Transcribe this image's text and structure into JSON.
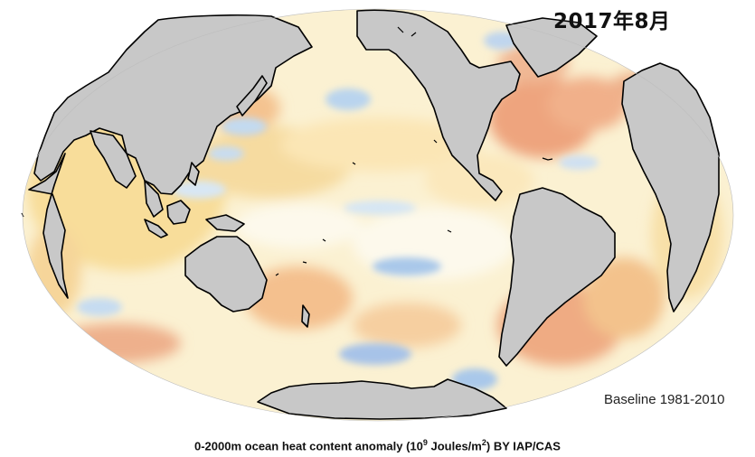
{
  "map": {
    "date_label": "2017年8月",
    "baseline_label": "Baseline 1981-2010",
    "caption": {
      "part1": "0-2000m ocean heat content anomaly (10",
      "exp1": "9",
      "part2": " Joules/m",
      "exp2": "2",
      "part3": ") BY IAP/CAS"
    },
    "projection": "mollweide-like global ellipse",
    "colors": {
      "land": "#c8c8c8",
      "coast": "#000000",
      "ocean_neutral": "#fbf6df",
      "warm_light": "#f7dc98",
      "warm_mid": "#f2ad7f",
      "warm_strong": "#e58a6c",
      "cool_light": "#cfe2f3",
      "cool_mid": "#a9cbeb",
      "cool_strong": "#7fa6d8"
    }
  }
}
